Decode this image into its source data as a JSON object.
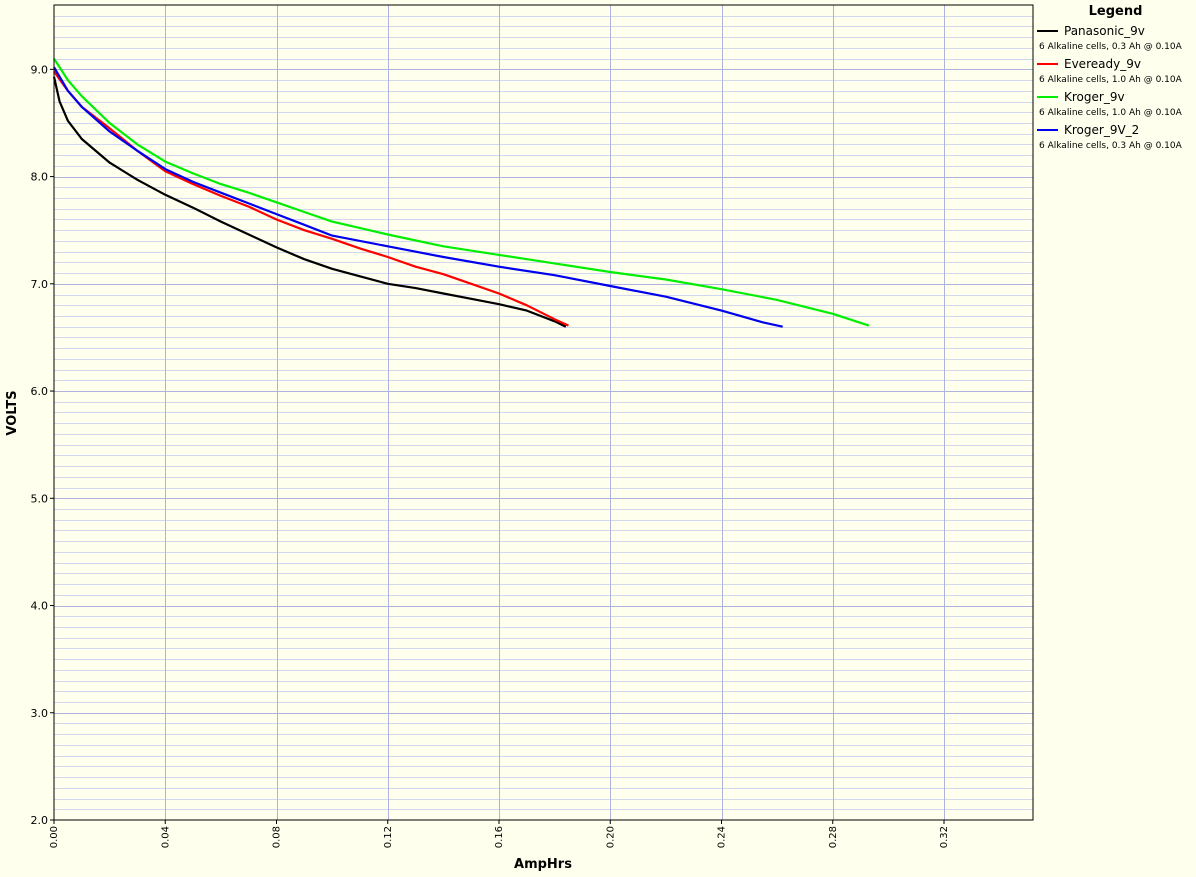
{
  "chart_data": {
    "type": "line",
    "title": "",
    "xlabel": "AmpHrs",
    "ylabel": "VOLTS",
    "xlim": [
      0.0,
      0.352
    ],
    "ylim": [
      2.0,
      9.6
    ],
    "x_ticks": [
      "0.00",
      "0.04",
      "0.08",
      "0.12",
      "0.16",
      "0.20",
      "0.24",
      "0.28",
      "0.32"
    ],
    "y_ticks": [
      "2.0",
      "3.0",
      "4.0",
      "5.0",
      "6.0",
      "7.0",
      "8.0",
      "9.0"
    ],
    "grid": true,
    "legend_title": "Legend",
    "legend_position": "right",
    "series": [
      {
        "name": "Panasonic_9v",
        "description": "6 Alkaline cells, 0.3 Ah @ 0.10A",
        "color": "#000000",
        "points": [
          [
            0.0,
            8.93
          ],
          [
            0.002,
            8.7
          ],
          [
            0.005,
            8.52
          ],
          [
            0.01,
            8.35
          ],
          [
            0.02,
            8.13
          ],
          [
            0.03,
            7.97
          ],
          [
            0.04,
            7.83
          ],
          [
            0.05,
            7.71
          ],
          [
            0.06,
            7.58
          ],
          [
            0.07,
            7.46
          ],
          [
            0.08,
            7.34
          ],
          [
            0.09,
            7.23
          ],
          [
            0.1,
            7.14
          ],
          [
            0.11,
            7.07
          ],
          [
            0.12,
            7.0
          ],
          [
            0.13,
            6.96
          ],
          [
            0.14,
            6.91
          ],
          [
            0.15,
            6.86
          ],
          [
            0.16,
            6.81
          ],
          [
            0.17,
            6.75
          ],
          [
            0.18,
            6.65
          ],
          [
            0.184,
            6.6
          ]
        ]
      },
      {
        "name": "Eveready_9v",
        "description": "6 Alkaline cells, 1.0 Ah @ 0.10A",
        "color": "#ff0000",
        "points": [
          [
            0.0,
            8.98
          ],
          [
            0.005,
            8.8
          ],
          [
            0.01,
            8.65
          ],
          [
            0.02,
            8.45
          ],
          [
            0.03,
            8.24
          ],
          [
            0.04,
            8.05
          ],
          [
            0.05,
            7.93
          ],
          [
            0.06,
            7.82
          ],
          [
            0.07,
            7.72
          ],
          [
            0.08,
            7.6
          ],
          [
            0.09,
            7.5
          ],
          [
            0.1,
            7.42
          ],
          [
            0.11,
            7.33
          ],
          [
            0.12,
            7.25
          ],
          [
            0.13,
            7.16
          ],
          [
            0.14,
            7.09
          ],
          [
            0.15,
            7.0
          ],
          [
            0.16,
            6.91
          ],
          [
            0.17,
            6.8
          ],
          [
            0.18,
            6.67
          ],
          [
            0.185,
            6.61
          ]
        ]
      },
      {
        "name": "Kroger_9v",
        "description": "6 Alkaline cells, 1.0 Ah @ 0.10A",
        "color": "#00ee00",
        "points": [
          [
            0.0,
            9.1
          ],
          [
            0.005,
            8.9
          ],
          [
            0.01,
            8.75
          ],
          [
            0.02,
            8.5
          ],
          [
            0.03,
            8.3
          ],
          [
            0.04,
            8.14
          ],
          [
            0.05,
            8.03
          ],
          [
            0.06,
            7.93
          ],
          [
            0.07,
            7.85
          ],
          [
            0.08,
            7.76
          ],
          [
            0.09,
            7.67
          ],
          [
            0.1,
            7.58
          ],
          [
            0.12,
            7.46
          ],
          [
            0.14,
            7.35
          ],
          [
            0.16,
            7.27
          ],
          [
            0.18,
            7.19
          ],
          [
            0.2,
            7.11
          ],
          [
            0.22,
            7.04
          ],
          [
            0.24,
            6.95
          ],
          [
            0.26,
            6.85
          ],
          [
            0.28,
            6.72
          ],
          [
            0.293,
            6.61
          ]
        ]
      },
      {
        "name": "Kroger_9V_2",
        "description": "6 Alkaline cells, 0.3 Ah @ 0.10A",
        "color": "#0000ee",
        "points": [
          [
            0.0,
            9.02
          ],
          [
            0.005,
            8.8
          ],
          [
            0.01,
            8.65
          ],
          [
            0.02,
            8.42
          ],
          [
            0.03,
            8.24
          ],
          [
            0.04,
            8.07
          ],
          [
            0.05,
            7.95
          ],
          [
            0.06,
            7.85
          ],
          [
            0.07,
            7.75
          ],
          [
            0.08,
            7.65
          ],
          [
            0.09,
            7.55
          ],
          [
            0.1,
            7.45
          ],
          [
            0.12,
            7.35
          ],
          [
            0.14,
            7.25
          ],
          [
            0.16,
            7.16
          ],
          [
            0.18,
            7.08
          ],
          [
            0.2,
            6.98
          ],
          [
            0.22,
            6.88
          ],
          [
            0.24,
            6.75
          ],
          [
            0.255,
            6.64
          ],
          [
            0.262,
            6.6
          ]
        ]
      }
    ]
  }
}
